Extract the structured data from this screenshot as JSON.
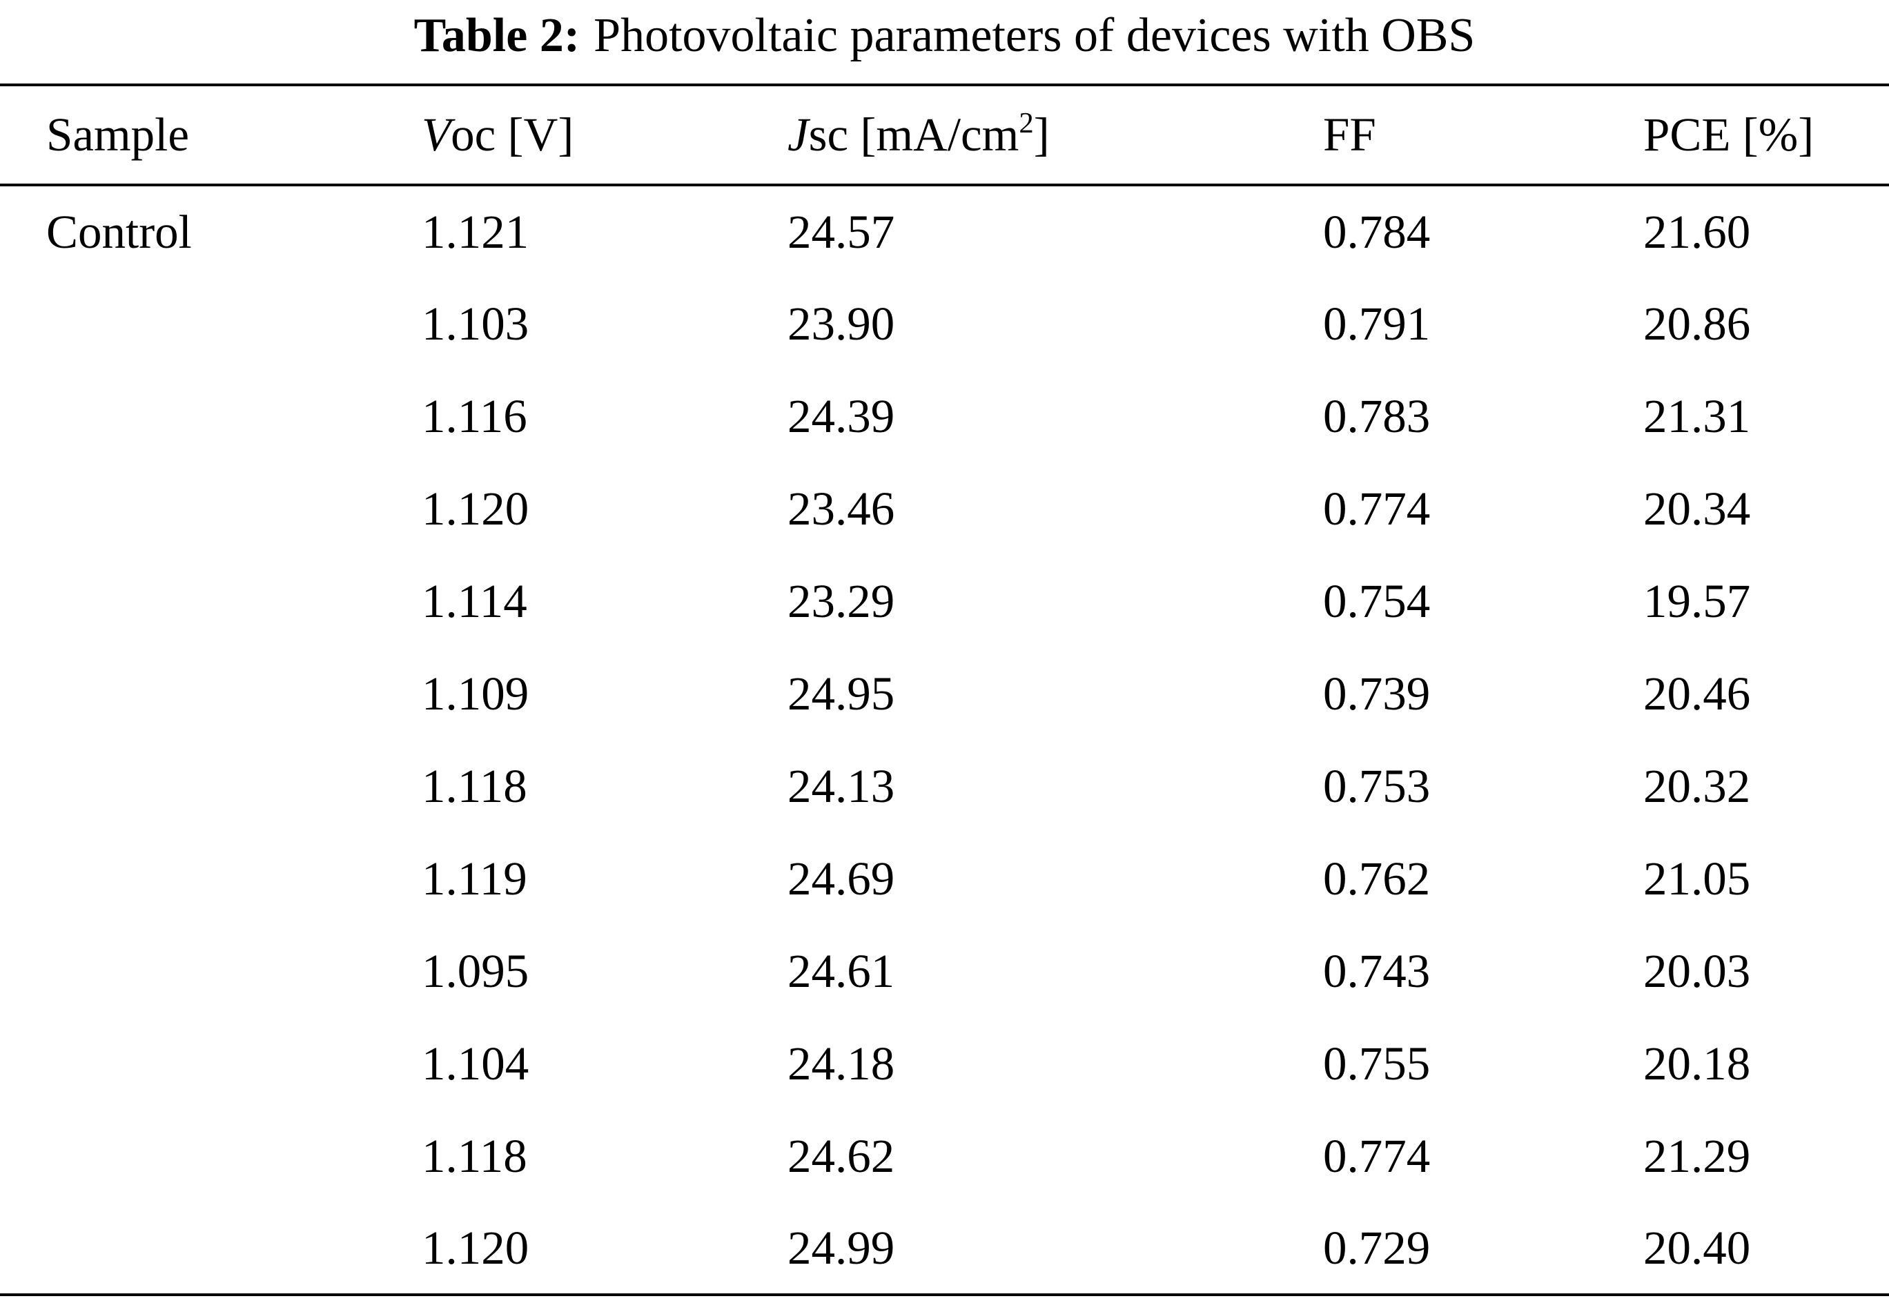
{
  "page": {
    "background_color": "#ffffff",
    "text_color": "#000000"
  },
  "table": {
    "title_label": "Table 2:",
    "title_text": "Photovoltaic parameters of devices with OBS",
    "headers": [
      {
        "name": "sample",
        "segments": [
          {
            "t": "Sample"
          }
        ]
      },
      {
        "name": "voc",
        "segments": [
          {
            "t": "V",
            "style": "italic"
          },
          {
            "t": "oc [V]"
          }
        ]
      },
      {
        "name": "jsc",
        "segments": [
          {
            "t": "J",
            "style": "italic"
          },
          {
            "t": "sc [mA/cm"
          },
          {
            "t": "2",
            "style": "sup"
          },
          {
            "t": "]"
          }
        ]
      },
      {
        "name": "ff",
        "segments": [
          {
            "t": "FF"
          }
        ]
      },
      {
        "name": "pce",
        "segments": [
          {
            "t": "PCE [%]"
          }
        ]
      }
    ],
    "rows": [
      {
        "sample": "Control",
        "voc": "1.121",
        "jsc": "24.57",
        "ff": "0.784",
        "pce": "21.60"
      },
      {
        "sample": "",
        "voc": "1.103",
        "jsc": "23.90",
        "ff": "0.791",
        "pce": "20.86"
      },
      {
        "sample": "",
        "voc": "1.116",
        "jsc": "24.39",
        "ff": "0.783",
        "pce": "21.31"
      },
      {
        "sample": "",
        "voc": "1.120",
        "jsc": "23.46",
        "ff": "0.774",
        "pce": "20.34"
      },
      {
        "sample": "",
        "voc": "1.114",
        "jsc": "23.29",
        "ff": "0.754",
        "pce": "19.57"
      },
      {
        "sample": "",
        "voc": "1.109",
        "jsc": "24.95",
        "ff": "0.739",
        "pce": "20.46"
      },
      {
        "sample": "",
        "voc": "1.118",
        "jsc": "24.13",
        "ff": "0.753",
        "pce": "20.32"
      },
      {
        "sample": "",
        "voc": "1.119",
        "jsc": "24.69",
        "ff": "0.762",
        "pce": "21.05"
      },
      {
        "sample": "",
        "voc": "1.095",
        "jsc": "24.61",
        "ff": "0.743",
        "pce": "20.03"
      },
      {
        "sample": "",
        "voc": "1.104",
        "jsc": "24.18",
        "ff": "0.755",
        "pce": "20.18"
      },
      {
        "sample": "",
        "voc": "1.118",
        "jsc": "24.62",
        "ff": "0.774",
        "pce": "21.29"
      },
      {
        "sample": "",
        "voc": "1.120",
        "jsc": "24.99",
        "ff": "0.729",
        "pce": "20.40"
      }
    ]
  },
  "chart_data": {
    "type": "table",
    "title": "Table 2: Photovoltaic parameters of devices with OBS",
    "columns": [
      "Sample",
      "Voc [V]",
      "Jsc [mA/cm2]",
      "FF",
      "PCE [%]"
    ],
    "rows": [
      [
        "Control",
        1.121,
        24.57,
        0.784,
        21.6
      ],
      [
        "",
        1.103,
        23.9,
        0.791,
        20.86
      ],
      [
        "",
        1.116,
        24.39,
        0.783,
        21.31
      ],
      [
        "",
        1.12,
        23.46,
        0.774,
        20.34
      ],
      [
        "",
        1.114,
        23.29,
        0.754,
        19.57
      ],
      [
        "",
        1.109,
        24.95,
        0.739,
        20.46
      ],
      [
        "",
        1.118,
        24.13,
        0.753,
        20.32
      ],
      [
        "",
        1.119,
        24.69,
        0.762,
        21.05
      ],
      [
        "",
        1.095,
        24.61,
        0.743,
        20.03
      ],
      [
        "",
        1.104,
        24.18,
        0.755,
        20.18
      ],
      [
        "",
        1.118,
        24.62,
        0.774,
        21.29
      ],
      [
        "",
        1.12,
        24.99,
        0.729,
        20.4
      ]
    ]
  }
}
